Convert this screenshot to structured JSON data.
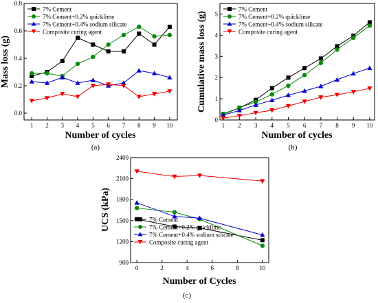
{
  "panels": [
    "(a)",
    "(b)",
    "(c)"
  ],
  "colors": {
    "black": "#000000",
    "green": "#0a8a0a",
    "blue": "#0000cc",
    "red": "#ee0000"
  },
  "chart_data": [
    {
      "type": "line",
      "panel_label": "(a)",
      "xlabel": "Number of cycles",
      "ylabel": "Mass loss (g)",
      "x": [
        1,
        2,
        3,
        4,
        5,
        6,
        7,
        8,
        9,
        10
      ],
      "xticks": [
        1,
        2,
        3,
        4,
        5,
        6,
        7,
        8,
        9,
        10
      ],
      "xlim": [
        0.5,
        10.5
      ],
      "ylim": [
        -0.05,
        0.8
      ],
      "yticks": [
        0.0,
        0.2,
        0.4,
        0.6,
        0.8
      ],
      "ytick_labels": [
        "0.0",
        "0.2",
        "0.4",
        "0.6",
        "0.8"
      ],
      "legend_position": "top-left",
      "series": [
        {
          "name": "7% Cement",
          "color": "#000000",
          "marker": "square",
          "values": [
            0.27,
            0.3,
            0.38,
            0.55,
            0.5,
            0.45,
            0.45,
            0.58,
            0.5,
            0.63
          ]
        },
        {
          "name": "7% Cement+0.2% quicklime",
          "color": "#0a8a0a",
          "marker": "circle",
          "values": [
            0.29,
            0.29,
            0.27,
            0.36,
            0.41,
            0.5,
            0.57,
            0.63,
            0.56,
            0.57
          ]
        },
        {
          "name": "7% Cement+0.4% sodium silicate",
          "color": "#0000cc",
          "marker": "triangle-up",
          "values": [
            0.23,
            0.22,
            0.26,
            0.22,
            0.24,
            0.2,
            0.22,
            0.31,
            0.29,
            0.26
          ]
        },
        {
          "name": "Composite curing agent",
          "color": "#ee0000",
          "marker": "triangle-down",
          "values": [
            0.09,
            0.11,
            0.14,
            0.12,
            0.2,
            0.21,
            0.2,
            0.12,
            0.14,
            0.16
          ]
        }
      ]
    },
    {
      "type": "line",
      "panel_label": "(b)",
      "xlabel": "Number of cycles",
      "ylabel": "Cumulative mass loss (g)",
      "x": [
        1,
        2,
        3,
        4,
        5,
        6,
        7,
        8,
        9,
        10
      ],
      "xticks": [
        1,
        2,
        3,
        4,
        5,
        6,
        7,
        8,
        9,
        10
      ],
      "xlim": [
        0.8,
        10.3
      ],
      "ylim": [
        0,
        5.5
      ],
      "yticks": [
        0,
        1,
        2,
        3,
        4,
        5
      ],
      "ytick_labels": [
        "0",
        "1",
        "2",
        "3",
        "4",
        "5"
      ],
      "legend_position": "top-left",
      "series": [
        {
          "name": "7% Cement",
          "color": "#000000",
          "marker": "square",
          "values": [
            0.27,
            0.57,
            0.95,
            1.5,
            2.0,
            2.45,
            2.9,
            3.48,
            3.98,
            4.61
          ]
        },
        {
          "name": "7% Cement+0.2% quicklime",
          "color": "#0a8a0a",
          "marker": "circle",
          "values": [
            0.29,
            0.58,
            0.85,
            1.21,
            1.62,
            2.12,
            2.69,
            3.32,
            3.88,
            4.45
          ]
        },
        {
          "name": "7% Cement+0.4% sodium silicate",
          "color": "#0000cc",
          "marker": "triangle-up",
          "values": [
            0.23,
            0.45,
            0.71,
            0.93,
            1.17,
            1.37,
            1.59,
            1.9,
            2.19,
            2.45
          ]
        },
        {
          "name": "Composite curing agent",
          "color": "#ee0000",
          "marker": "triangle-down",
          "values": [
            0.09,
            0.2,
            0.34,
            0.46,
            0.66,
            0.87,
            1.07,
            1.19,
            1.33,
            1.49
          ]
        }
      ]
    },
    {
      "type": "line",
      "panel_label": "(c)",
      "xlabel": "Number of Cycles",
      "ylabel": "UCS (kPa)",
      "x": [
        0,
        3,
        5,
        10
      ],
      "xticks": [
        0,
        2,
        4,
        6,
        8,
        10
      ],
      "xlim": [
        -0.5,
        10.5
      ],
      "ylim": [
        900,
        2400
      ],
      "yticks": [
        900,
        1200,
        1500,
        1800,
        2100,
        2400
      ],
      "ytick_labels": [
        "900",
        "1200",
        "1500",
        "1800",
        "2100",
        "2400"
      ],
      "legend_position": "bottom-left",
      "series": [
        {
          "name": "7% Cement",
          "color": "#000000",
          "marker": "square",
          "values": [
            1520,
            1415,
            1395,
            1220
          ]
        },
        {
          "name": "7% Cement+0.2% quicklime",
          "color": "#0a8a0a",
          "marker": "circle",
          "values": [
            1680,
            1620,
            1520,
            1140
          ]
        },
        {
          "name": "7% Cement+0.4% sodium silicate",
          "color": "#0000cc",
          "marker": "triangle-up",
          "values": [
            1755,
            1560,
            1535,
            1295
          ]
        },
        {
          "name": "Composite curing agent",
          "color": "#ee0000",
          "marker": "triangle-down",
          "values": [
            2205,
            2130,
            2145,
            2065
          ]
        }
      ]
    }
  ]
}
